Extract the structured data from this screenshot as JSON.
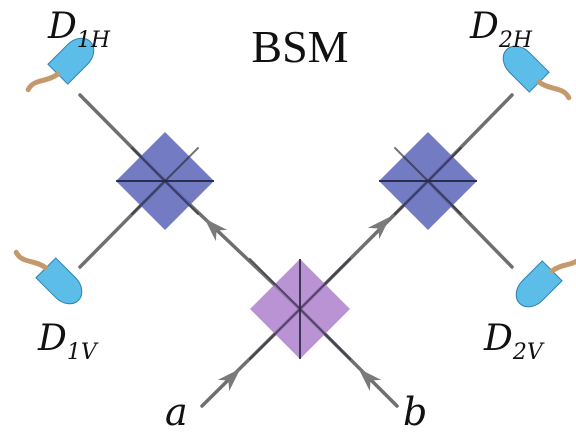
{
  "title": "BSM",
  "detectors": {
    "d1h": {
      "main": "D",
      "sub": "1H"
    },
    "d2h": {
      "main": "D",
      "sub": "2H"
    },
    "d1v": {
      "main": "D",
      "sub": "1V"
    },
    "d2v": {
      "main": "D",
      "sub": "2V"
    }
  },
  "inputs": {
    "a": "a",
    "b": "b"
  },
  "colors": {
    "beam": "#6f6f6f",
    "pbs": "#5b64b8",
    "bs": "#a878c8",
    "detector": "#5bbde8",
    "cable": "#c49a6c",
    "arrow": "#7a7a7a"
  }
}
